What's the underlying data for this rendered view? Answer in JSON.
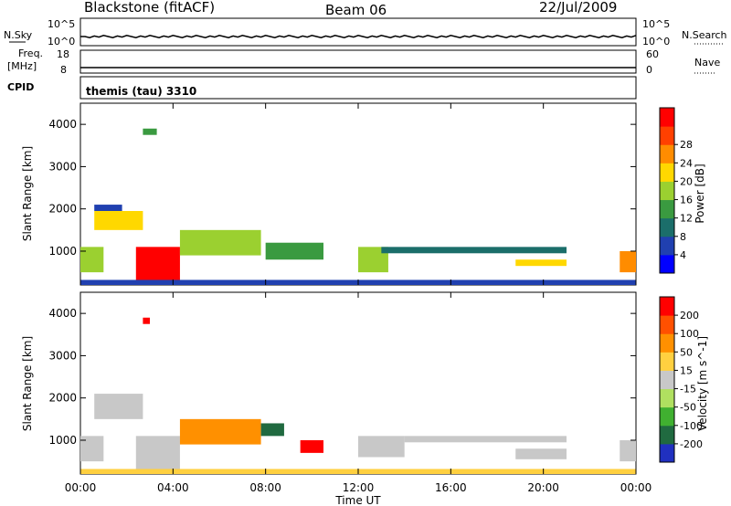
{
  "header": {
    "station": "Blackstone (fitACF)",
    "beam": "Beam 06",
    "date": "22/Jul/2009"
  },
  "nsky": {
    "label": "N.Sky",
    "ticks": [
      "10^5",
      "10^0"
    ],
    "right_label": "N.Search",
    "right_ticks": [
      "10^5",
      "10^0"
    ]
  },
  "freq": {
    "label_top": "Freq.",
    "label_unit": "[MHz]",
    "ticks": [
      "18",
      "8"
    ],
    "right_label": "Nave",
    "right_ticks": [
      "60",
      "0"
    ]
  },
  "cpid": {
    "label": "CPID",
    "value": "themis (tau) 3310"
  },
  "x_axis": {
    "label": "Time UT",
    "ticks": [
      "00:00",
      "04:00",
      "08:00",
      "12:00",
      "16:00",
      "20:00",
      "00:00"
    ]
  },
  "chart_data": [
    {
      "type": "heatmap",
      "name": "power",
      "ylabel": "Slant Range [km]",
      "yticks": [
        "1000",
        "2000",
        "3000",
        "4000"
      ],
      "ylim": [
        200,
        4500
      ],
      "xlim": [
        0,
        24
      ],
      "colorbar": {
        "label": "Power [dB]",
        "ticks": [
          "4",
          "8",
          "12",
          "16",
          "20",
          "24",
          "28"
        ],
        "colors": [
          "#0000ff",
          "#2040b0",
          "#1b6e6a",
          "#3a9a40",
          "#9bd030",
          "#ffd800",
          "#ff8c00",
          "#ff4000",
          "#ff0000"
        ]
      },
      "regions": [
        {
          "t": [
            2.7,
            3.3
          ],
          "r": [
            3750,
            3900
          ],
          "level": 3
        },
        {
          "t": [
            0.6,
            1.8
          ],
          "r": [
            1950,
            2100
          ],
          "level": 1
        },
        {
          "t": [
            0.6,
            2.7
          ],
          "r": [
            1500,
            1950
          ],
          "level": 5
        },
        {
          "t": [
            0.0,
            1.0
          ],
          "r": [
            500,
            1100
          ],
          "level": 4
        },
        {
          "t": [
            2.4,
            4.3
          ],
          "r": [
            200,
            1100
          ],
          "level": 8
        },
        {
          "t": [
            4.3,
            7.8
          ],
          "r": [
            900,
            1500
          ],
          "level": 4
        },
        {
          "t": [
            8.0,
            10.5
          ],
          "r": [
            800,
            1200
          ],
          "level": 3
        },
        {
          "t": [
            12.0,
            13.3
          ],
          "r": [
            500,
            1100
          ],
          "level": 4
        },
        {
          "t": [
            13.0,
            21.0
          ],
          "r": [
            950,
            1100
          ],
          "level": 2
        },
        {
          "t": [
            18.8,
            21.0
          ],
          "r": [
            650,
            800
          ],
          "level": 5
        },
        {
          "t": [
            23.3,
            24.0
          ],
          "r": [
            500,
            1000
          ],
          "level": 6
        },
        {
          "t": [
            0.0,
            24.0
          ],
          "r": [
            200,
            320
          ],
          "level": 1
        }
      ]
    },
    {
      "type": "heatmap",
      "name": "velocity",
      "ylabel": "Slant Range [km]",
      "yticks": [
        "1000",
        "2000",
        "3000",
        "4000"
      ],
      "ylim": [
        200,
        4500
      ],
      "xlim": [
        0,
        24
      ],
      "colorbar": {
        "label": "Velocity [m s^-1]",
        "ticks": [
          "200",
          "100",
          "50",
          "15",
          "-15",
          "-50",
          "-100",
          "-200"
        ],
        "colors": [
          "#2030c0",
          "#206a40",
          "#40b030",
          "#b0e060",
          "#c8c8c8",
          "#ffd040",
          "#ff9000",
          "#ff5000",
          "#ff0000"
        ]
      },
      "regions": [
        {
          "t": [
            2.7,
            3.0
          ],
          "r": [
            3750,
            3900
          ],
          "level": 8
        },
        {
          "t": [
            0.6,
            2.7
          ],
          "r": [
            1500,
            2100
          ],
          "level": 4
        },
        {
          "t": [
            0.0,
            1.0
          ],
          "r": [
            500,
            1100
          ],
          "level": 4
        },
        {
          "t": [
            2.4,
            4.3
          ],
          "r": [
            300,
            1100
          ],
          "level": 4
        },
        {
          "t": [
            4.3,
            7.8
          ],
          "r": [
            900,
            1500
          ],
          "level": 6
        },
        {
          "t": [
            7.8,
            8.8
          ],
          "r": [
            1100,
            1400
          ],
          "level": 1
        },
        {
          "t": [
            9.5,
            10.5
          ],
          "r": [
            700,
            1000
          ],
          "level": 8
        },
        {
          "t": [
            12.0,
            14.0
          ],
          "r": [
            600,
            1100
          ],
          "level": 4
        },
        {
          "t": [
            14.0,
            21.0
          ],
          "r": [
            950,
            1100
          ],
          "level": 4
        },
        {
          "t": [
            18.8,
            21.0
          ],
          "r": [
            550,
            800
          ],
          "level": 4
        },
        {
          "t": [
            23.3,
            24.0
          ],
          "r": [
            500,
            1000
          ],
          "level": 4
        },
        {
          "t": [
            0.0,
            24.0
          ],
          "r": [
            200,
            320
          ],
          "level": 5
        }
      ]
    }
  ]
}
